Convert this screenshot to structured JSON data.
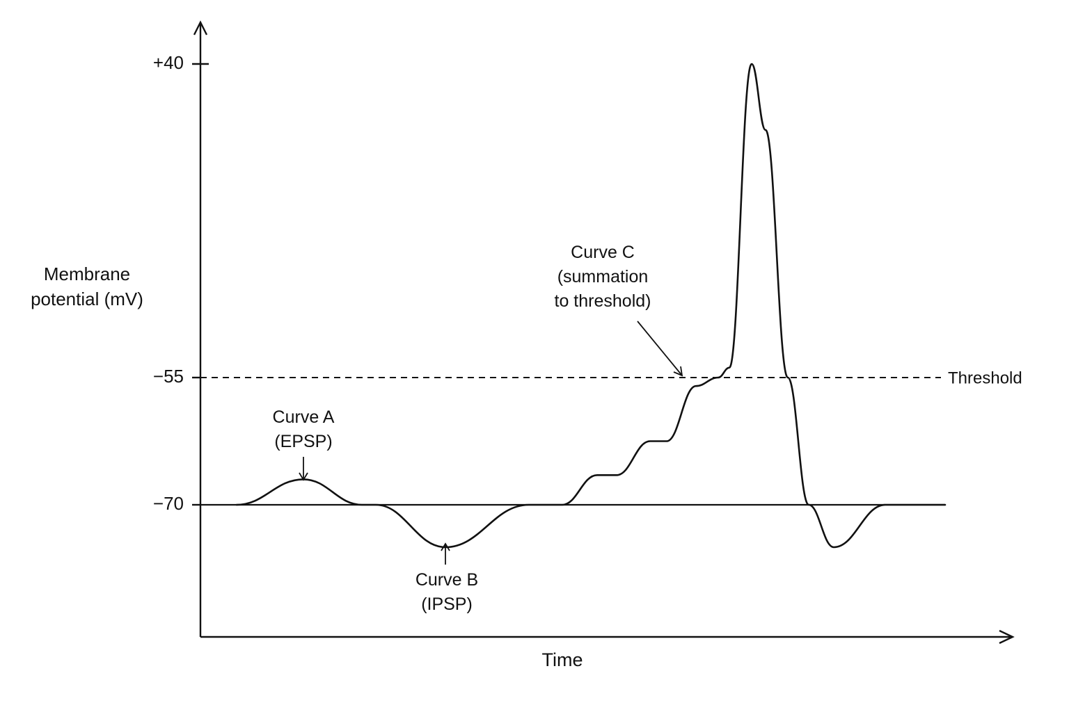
{
  "chart_data": {
    "type": "line",
    "ylabel": [
      "Membrane",
      "potential (mV)"
    ],
    "xlabel": "Time",
    "y_ticks": [
      {
        "value": 40,
        "label": "+40"
      },
      {
        "value": -55,
        "label": "−55"
      },
      {
        "value": -70,
        "label": "−70"
      }
    ],
    "threshold": {
      "value": -55,
      "label": "Threshold"
    },
    "resting_potential": -70,
    "annotations": {
      "curve_a": [
        "Curve A",
        "(EPSP)"
      ],
      "curve_b": [
        "Curve B",
        "(IPSP)"
      ],
      "curve_c": [
        "Curve C",
        "(summation",
        "to threshold)"
      ]
    },
    "series": [
      {
        "x": [
          0,
          1,
          2,
          3,
          4,
          5,
          6,
          7,
          8,
          9,
          10,
          11,
          12,
          13,
          14,
          15,
          16,
          17,
          18,
          19,
          20,
          21,
          22
        ],
        "y": [
          -70,
          -67,
          -70,
          -70,
          -75,
          -70,
          -70,
          -66.5,
          -66.5,
          -62.5,
          -62.5,
          -56,
          -55,
          -52,
          40,
          20,
          -55,
          -70,
          -75,
          -70,
          -70,
          -70,
          -70
        ]
      }
    ]
  },
  "colors": {
    "ink": "#111111",
    "background": "#ffffff"
  }
}
